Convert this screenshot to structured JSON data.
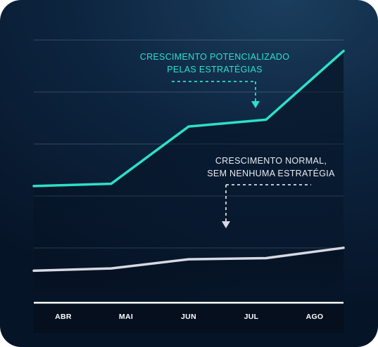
{
  "chart_data": {
    "type": "line",
    "categories": [
      "ABR",
      "MAI",
      "JUN",
      "JUL",
      "AGO"
    ],
    "series": [
      {
        "color": "#2de0c8",
        "values": [
          41,
          42,
          67,
          70,
          100
        ]
      },
      {
        "color": "#d6d9e3",
        "values": [
          4,
          5,
          9,
          9.5,
          14
        ]
      }
    ],
    "ylim": [
      -10,
      110
    ],
    "grid": true,
    "annotations": [
      {
        "lines": [
          "CRESCIMENTO POTENCIALIZADO",
          "PELAS ESTRATÉGIAS"
        ],
        "color": "#2de0c8"
      },
      {
        "lines": [
          "CRESCIMENTO NORMAL,",
          "SEM NENHUMA ESTRATÉGIA"
        ],
        "color": "#e8ebf2"
      }
    ]
  }
}
